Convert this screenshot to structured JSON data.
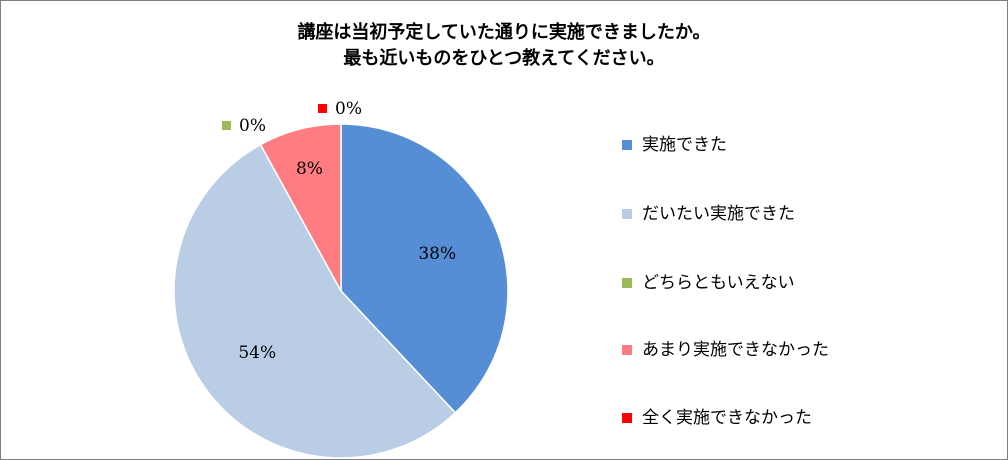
{
  "chart_data": {
    "type": "pie",
    "title_lines": [
      "講座は当初予定していた通りに実施できましたか。",
      "最も近いものをひとつ教えてください。"
    ],
    "categories": [
      "実施できた",
      "だいたい実施できた",
      "どちらともいえない",
      "あまり実施できなかった",
      "全く実施できなかった"
    ],
    "values": [
      38,
      54,
      0,
      8,
      0
    ],
    "labels": [
      "38%",
      "54%",
      "0%",
      "8%",
      "0%"
    ],
    "colors": [
      "#558ED5",
      "#B9CDE5",
      "#9BBB59",
      "#FF7C80",
      "#FF0000"
    ],
    "legend_position": "right"
  }
}
